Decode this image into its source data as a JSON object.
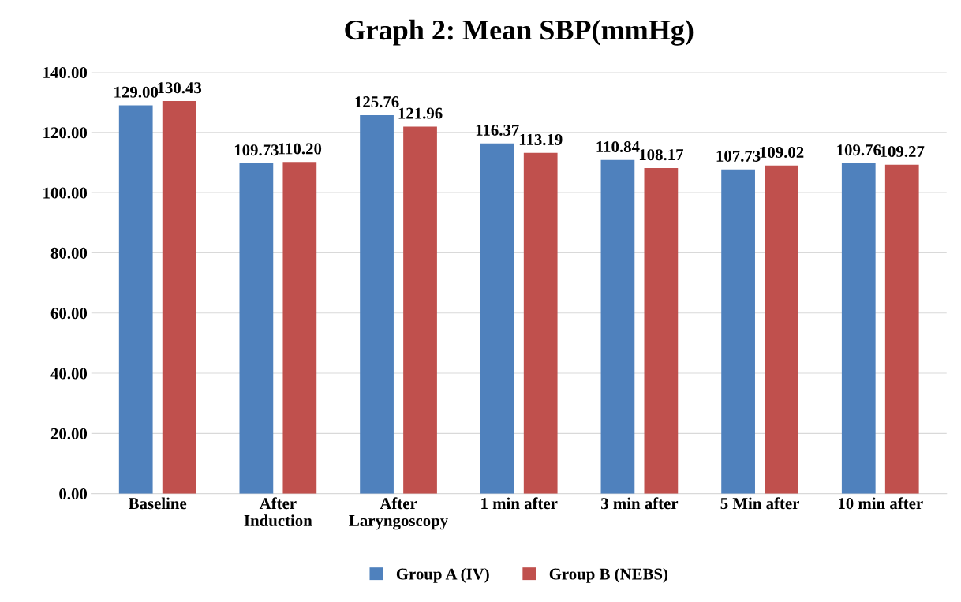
{
  "chart_data": {
    "type": "bar",
    "title": "Graph 2: Mean SBP(mmHg)",
    "categories": [
      "Baseline",
      "After\nInduction",
      "After\nLaryngoscopy",
      "1 min after",
      "3 min after",
      "5 Min after",
      "10 min after"
    ],
    "series": [
      {
        "name": "Group A (IV)",
        "color": "#4f81bd",
        "values": [
          129.0,
          109.73,
          125.76,
          116.37,
          110.84,
          107.73,
          109.76
        ],
        "value_labels": [
          "129.00",
          "109.73",
          "125.76",
          "116.37",
          "110.84",
          "107.73",
          "109.76"
        ]
      },
      {
        "name": "Group B (NEBS)",
        "color": "#c0504d",
        "values": [
          130.43,
          110.2,
          121.96,
          113.19,
          108.17,
          109.02,
          109.27
        ],
        "value_labels": [
          "130.43",
          "110.20",
          "121.96",
          "113.19",
          "108.17",
          "109.02",
          "109.27"
        ]
      }
    ],
    "ylim": [
      0,
      140
    ],
    "yticks": [
      {
        "value": 0,
        "label": "0.00"
      },
      {
        "value": 20,
        "label": "20.00"
      },
      {
        "value": 40,
        "label": "40.00"
      },
      {
        "value": 60,
        "label": "60.00"
      },
      {
        "value": 80,
        "label": "80.00"
      },
      {
        "value": 100,
        "label": "100.00"
      },
      {
        "value": 120,
        "label": "120.00"
      },
      {
        "value": 140,
        "label": "140.00"
      }
    ],
    "grid": "y",
    "legend": "bottom"
  }
}
